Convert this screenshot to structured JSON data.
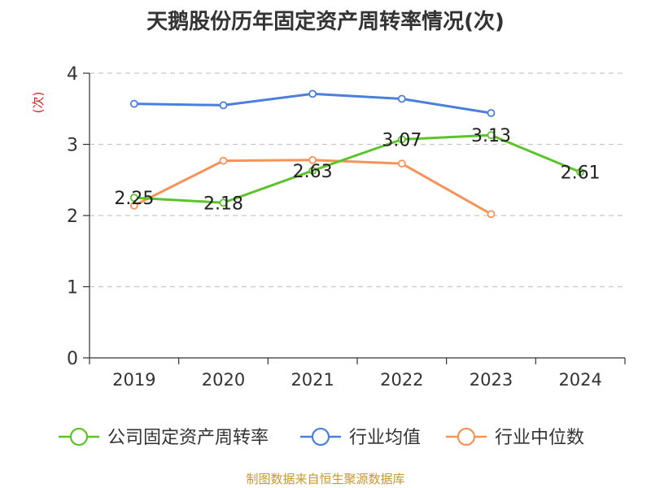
{
  "title": "天鹅股份历年固定资产周转率情况(次)",
  "footer": "制图数据来自恒生聚源数据库",
  "chart_data": {
    "type": "line",
    "title": "天鹅股份历年固定资产周转率情况(次)",
    "ylabel": "(次)",
    "xlabel": "",
    "categories": [
      "2019",
      "2020",
      "2021",
      "2022",
      "2023",
      "2024"
    ],
    "ylim": [
      0,
      4
    ],
    "yticks": [
      "0",
      "1",
      "2",
      "3",
      "4"
    ],
    "grid": true,
    "legend_position": "bottom",
    "series": [
      {
        "name": "公司固定资产周转率",
        "color": "#5bc42a",
        "values": [
          2.25,
          2.18,
          2.63,
          3.07,
          3.13,
          2.61
        ],
        "data_labels": [
          "2.25",
          "2.18",
          "2.63",
          "3.07",
          "3.13",
          "2.61"
        ]
      },
      {
        "name": "行业均值",
        "color": "#4a7fdc",
        "values": [
          3.57,
          3.55,
          3.71,
          3.64,
          3.44,
          null
        ]
      },
      {
        "name": "行业中位数",
        "color": "#f5935a",
        "values": [
          2.14,
          2.77,
          2.78,
          2.73,
          2.02,
          null
        ]
      }
    ]
  }
}
